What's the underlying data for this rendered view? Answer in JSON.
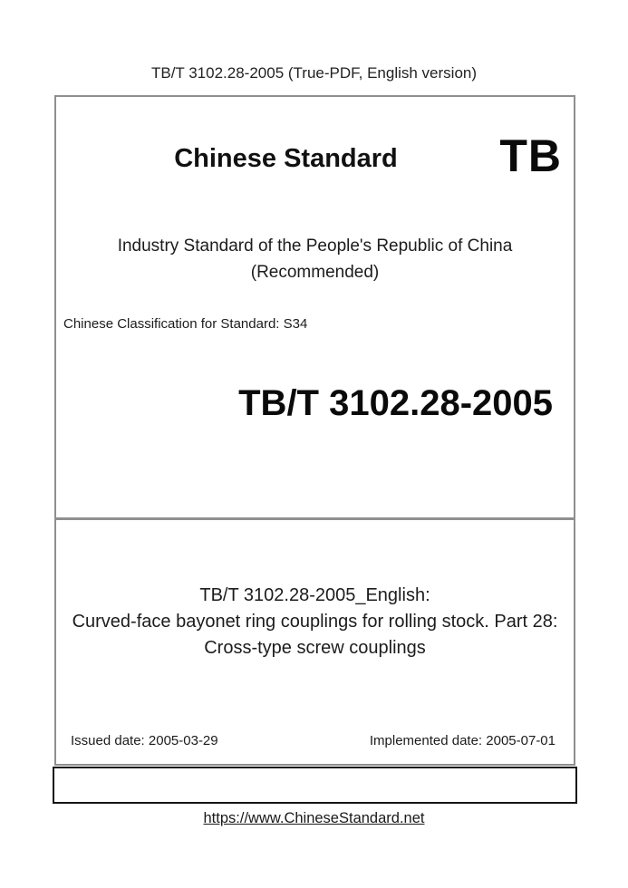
{
  "page": {
    "header": "TB/T 3102.28-2005 (True-PDF, English version)",
    "footer_link": "https://www.ChineseStandard.net"
  },
  "cover": {
    "brand_title": "Chinese Standard",
    "brand_code": "TB",
    "line1": "Industry Standard of the People's Republic of China",
    "line2": "(Recommended)",
    "classification": "Chinese Classification for Standard: S34",
    "standard_number": "TB/T 3102.28-2005"
  },
  "title_block": {
    "line1": "TB/T 3102.28-2005_English:",
    "line2": "Curved-face bayonet ring couplings for rolling stock. Part 28:",
    "line3": "Cross-type screw couplings"
  },
  "dates": {
    "issued": "Issued date: 2005-03-29",
    "implemented": "Implemented date: 2005-07-01"
  },
  "colors": {
    "cover_border": "#8f8f8f",
    "footer_box_border": "#141414",
    "text": "#1c1c1c",
    "link": "#1a1a1a"
  }
}
